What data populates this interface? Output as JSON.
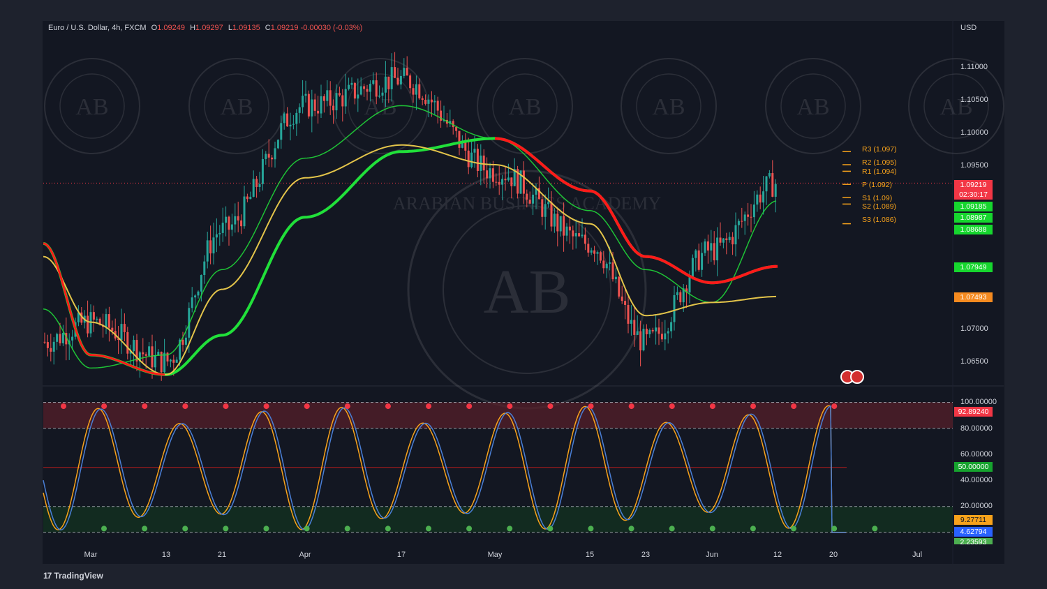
{
  "header": {
    "symbol": "Euro / U.S. Dollar, 4h, FXCM",
    "open_label": "O",
    "open": "1.09249",
    "high_label": "H",
    "high": "1.09297",
    "low_label": "L",
    "low": "1.09135",
    "close_label": "C",
    "close": "1.09219",
    "change": "-0.00030 (-0.03%)"
  },
  "currency": "USD",
  "price_axis_ticks": [
    "1.11000",
    "1.10500",
    "1.10000",
    "1.09500",
    "1.07000",
    "1.06500"
  ],
  "osc_axis_ticks": [
    "100.00000",
    "80.00000",
    "60.00000",
    "40.00000",
    "20.00000"
  ],
  "time_axis": [
    "Mar",
    "13",
    "21",
    "Apr",
    "17",
    "May",
    "15",
    "23",
    "Jun",
    "12",
    "20",
    "Jul"
  ],
  "pivots": [
    {
      "label": "R3 (1.097)",
      "value": 1.097
    },
    {
      "label": "R2 (1.095)",
      "value": 1.095
    },
    {
      "label": "R1 (1.094)",
      "value": 1.094
    },
    {
      "label": "P (1.092)",
      "value": 1.092
    },
    {
      "label": "S1 (1.09)",
      "value": 1.09
    },
    {
      "label": "S2 (1.089)",
      "value": 1.089
    },
    {
      "label": "S3 (1.086)",
      "value": 1.086
    }
  ],
  "badges": {
    "last_price": "1.09219",
    "countdown": "02:30:17",
    "ma_values": [
      "1.09185",
      "1.08987",
      "1.08688"
    ],
    "ma_slow": "1.07949",
    "sine_ma": "1.07493",
    "osc_upper": "92.89240",
    "osc_mid": "50.00000",
    "osc_k": "9.27711",
    "osc_d": "4.62794",
    "osc_extra": "2.23593"
  },
  "colors": {
    "background": "#131722",
    "bull_candle": "#26a69a",
    "bear_candle": "#ef5350",
    "ma_green": "#21e03a",
    "ma_red": "#ff1a1a",
    "last_price": "#f23645",
    "pivot": "#f7a21b",
    "osc_k": "#4a7fd6",
    "osc_d": "#f7a21b",
    "overbought_zone": "#5a1f2a",
    "oversold_zone": "#12351f"
  },
  "watermark": "ARABIAN BUSINESS ACADEMY",
  "watermark_monogram": "AB",
  "brand": "TradingView",
  "brand_mark": "17",
  "chart_data": [
    {
      "type": "line",
      "title": "Euro / U.S. Dollar, 4h, FXCM",
      "ylabel": "USD",
      "ylim": [
        1.0625,
        1.1155
      ],
      "x": [
        "Mar 1",
        "Mar 13",
        "Mar 21",
        "Apr 1",
        "Apr 17",
        "May 1",
        "May 15",
        "May 23",
        "Jun 1",
        "Jun 12",
        "Jun 20",
        "Jul 1"
      ],
      "series": [
        {
          "values": [
            1.068,
            1.071,
            1.065,
            1.085,
            1.104,
            1.108,
            1.094,
            1.083,
            1.068,
            1.082,
            1.0922,
            null
          ]
        },
        {
          "values": [
            1.073,
            1.064,
            1.066,
            1.079,
            1.096,
            1.104,
            1.099,
            1.088,
            1.079,
            1.074,
            1.0895,
            null
          ]
        },
        {
          "values": [
            1.083,
            1.066,
            1.063,
            1.069,
            1.087,
            1.097,
            1.099,
            1.091,
            1.081,
            1.077,
            1.0795,
            null
          ]
        },
        {
          "values": [
            1.081,
            1.071,
            1.063,
            1.076,
            1.093,
            1.098,
            1.095,
            1.086,
            1.072,
            1.074,
            1.0749,
            null
          ]
        }
      ]
    },
    {
      "type": "line",
      "ylim": [
        0,
        100
      ],
      "x": [
        "Mar 1",
        "Mar 13",
        "Mar 21",
        "Apr 1",
        "Apr 17",
        "May 1",
        "May 15",
        "May 23",
        "Jun 1",
        "Jun 12",
        "Jun 20",
        "Jul 1"
      ],
      "series": [
        {
          "values": [
            30,
            95,
            5,
            90,
            10,
            100,
            5,
            95,
            10,
            90,
            9.28,
            null
          ]
        },
        {
          "values": [
            25,
            90,
            10,
            85,
            15,
            95,
            10,
            90,
            15,
            85,
            4.63,
            null
          ]
        }
      ]
    }
  ]
}
